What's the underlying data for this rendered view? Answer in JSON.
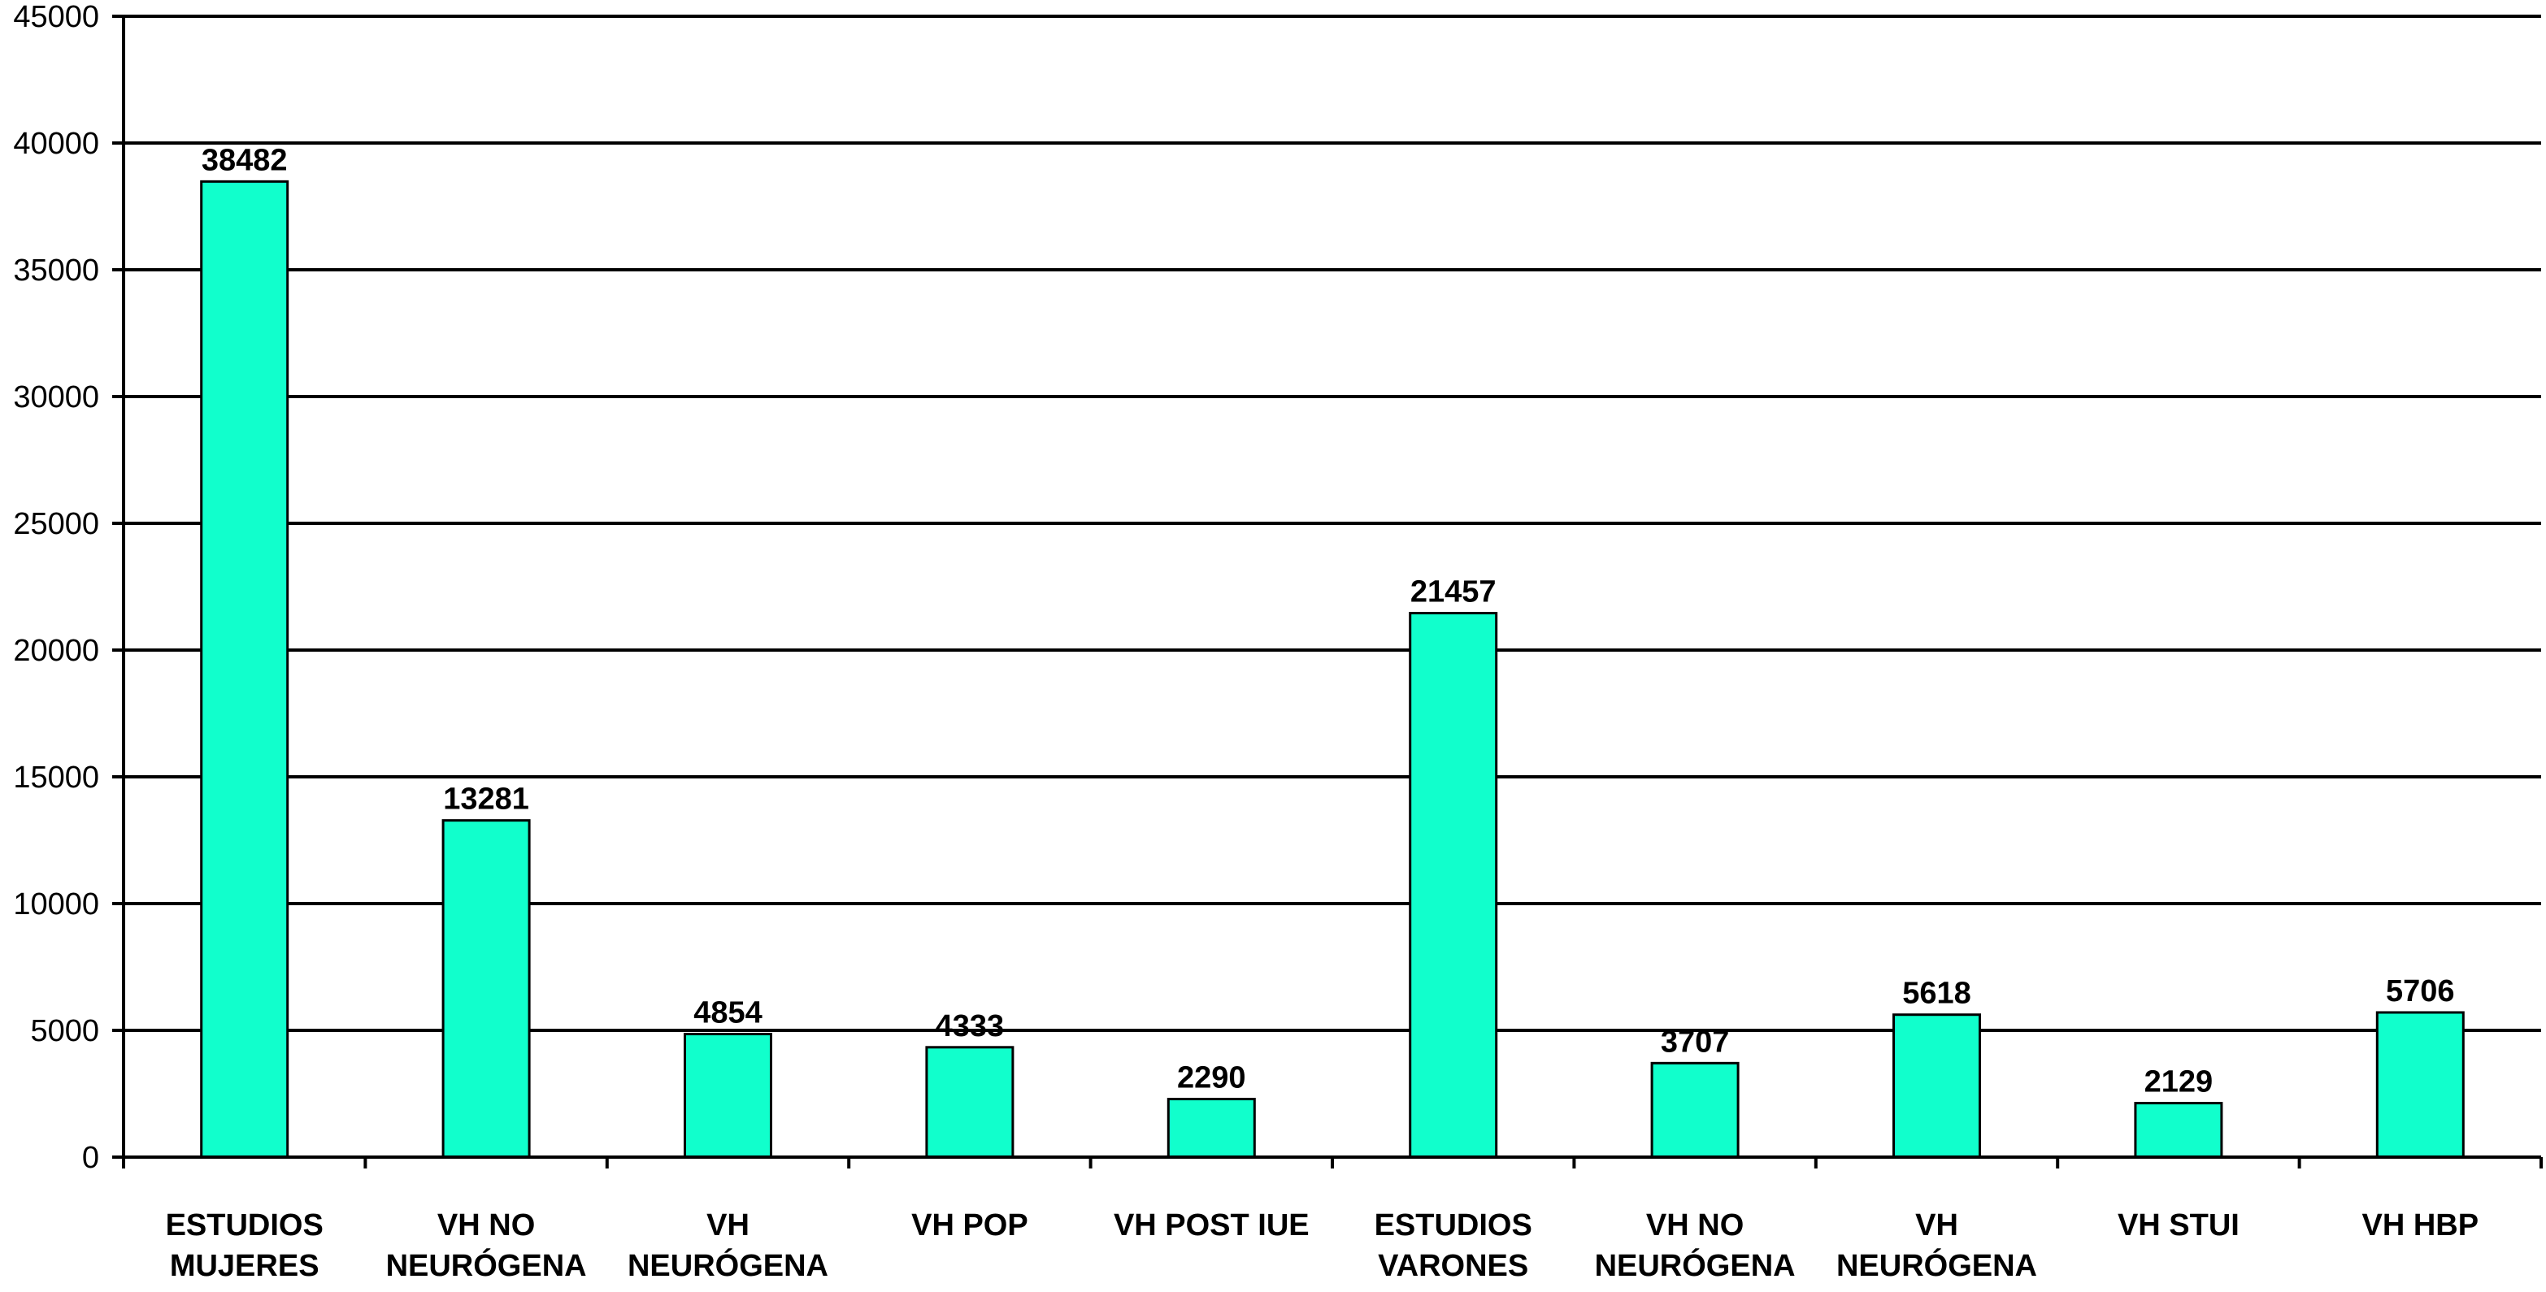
{
  "colors": {
    "bar_fill": "#11FFCC",
    "bar_stroke": "#000000",
    "gridline": "#000000",
    "text": "#000000",
    "background": "#FFFFFF"
  },
  "chart_data": {
    "type": "bar",
    "title": "",
    "xlabel": "",
    "ylabel": "",
    "ylim": [
      0,
      45000
    ],
    "yticks": [
      0,
      5000,
      10000,
      15000,
      20000,
      25000,
      30000,
      35000,
      40000,
      45000
    ],
    "grid": true,
    "legend": "none",
    "categories": [
      [
        "ESTUDIOS",
        "MUJERES"
      ],
      [
        "VH NO",
        "NEURÓGENA"
      ],
      [
        "VH",
        "NEURÓGENA"
      ],
      [
        "VH POP"
      ],
      [
        "VH POST IUE"
      ],
      [
        "ESTUDIOS",
        "VARONES"
      ],
      [
        "VH NO",
        "NEURÓGENA"
      ],
      [
        "VH",
        "NEURÓGENA"
      ],
      [
        "VH STUI"
      ],
      [
        "VH HBP"
      ]
    ],
    "values": [
      38482,
      13281,
      4854,
      4333,
      2290,
      21457,
      3707,
      5618,
      2129,
      5706
    ],
    "data_labels": [
      "38482",
      "13281",
      "4854",
      "4333",
      "2290",
      "21457",
      "3707",
      "5618",
      "2129",
      "5706"
    ]
  }
}
